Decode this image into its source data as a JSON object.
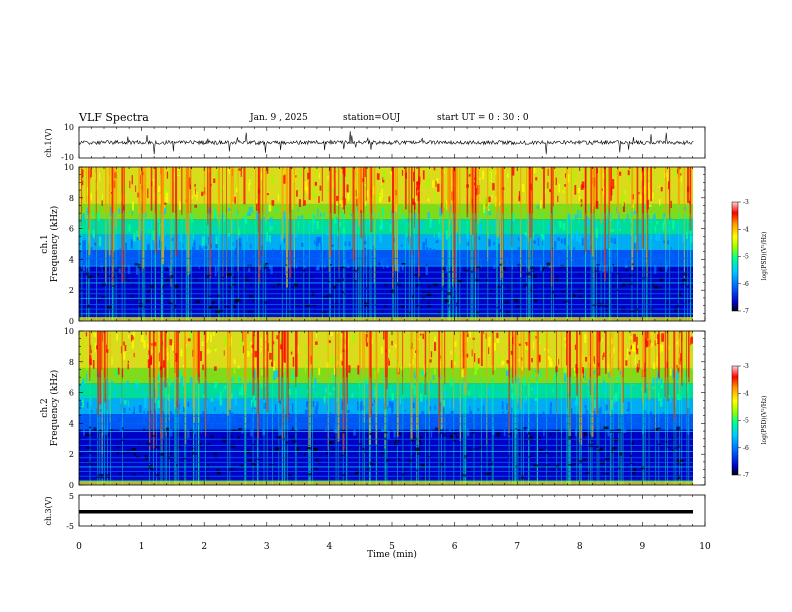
{
  "header": {
    "title": "VLF Spectra",
    "date": "Jan. 9 , 2025",
    "station": "station=OUJ",
    "start_ut": "start UT =  0 : 30 : 0"
  },
  "chart_data": [
    {
      "type": "line",
      "panel": "ch1-waveform",
      "ylabel": "ch.1(V)",
      "ytick_labels": [
        "10",
        "-10"
      ],
      "ylim": [
        -10,
        10
      ],
      "xlim": [
        0,
        10
      ]
    },
    {
      "type": "heatmap",
      "panel": "ch1-spectrogram",
      "ylabel": "ch.1\nFrequency (kHz)",
      "ylim": [
        0,
        10
      ],
      "yticks": [
        0,
        2,
        4,
        6,
        8,
        10
      ],
      "xlim": [
        0,
        10
      ],
      "colorbar": {
        "label": "log(PSD)(V²/Hz)",
        "ticks": [
          -3,
          -4,
          -5,
          -6,
          -7
        ],
        "range": [
          -7,
          -3
        ]
      }
    },
    {
      "type": "heatmap",
      "panel": "ch2-spectrogram",
      "ylabel": "ch.2\nFrequency (kHz)",
      "ylim": [
        0,
        10
      ],
      "yticks": [
        0,
        2,
        4,
        6,
        8,
        10
      ],
      "xlim": [
        0,
        10
      ],
      "colorbar": {
        "label": "log(PSD)(V²/Hz)",
        "ticks": [
          -3,
          -4,
          -5,
          -6,
          -7
        ],
        "range": [
          -7,
          -3
        ]
      }
    },
    {
      "type": "line",
      "panel": "ch3-waveform",
      "ylabel": "ch.3(V)",
      "ytick_labels": [
        "5",
        "-5"
      ],
      "ylim": [
        -5,
        5
      ],
      "xlim": [
        0,
        10
      ]
    }
  ],
  "xaxis": {
    "label": "Time (min)",
    "ticks": [
      0,
      1,
      2,
      3,
      4,
      5,
      6,
      7,
      8,
      9,
      10
    ]
  },
  "colors": {
    "waveform": "#000000",
    "colormap": [
      "#000000",
      "#0000c8",
      "#0064ff",
      "#00c8ff",
      "#00ff96",
      "#96ff00",
      "#ffff00",
      "#ff9600",
      "#ff0000",
      "#ffd2d2"
    ]
  }
}
